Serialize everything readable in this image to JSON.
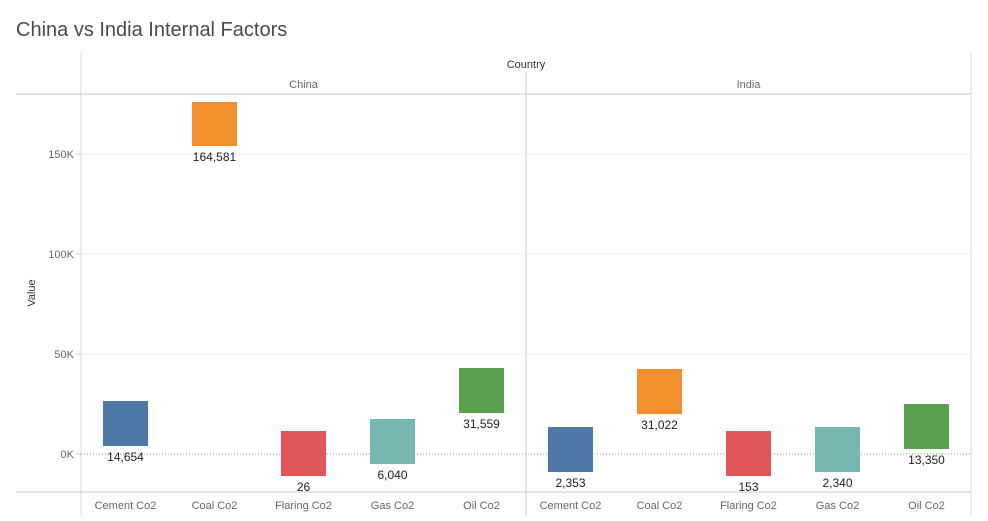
{
  "chart_data": {
    "type": "bar",
    "title": "China vs India Internal Factors",
    "column_header": "Country",
    "ylabel": "Value",
    "ylim": [
      -19000,
      180000
    ],
    "yticks": [
      {
        "value": 0,
        "label": "0K"
      },
      {
        "value": 50000,
        "label": "50K"
      },
      {
        "value": 100000,
        "label": "100K"
      },
      {
        "value": 150000,
        "label": "150K"
      }
    ],
    "panels": [
      {
        "name": "China",
        "bars": [
          {
            "category": "Cement Co2",
            "label": "14,654",
            "low": 4000,
            "high": 26500
          },
          {
            "category": "Coal Co2",
            "label": "164,581",
            "low": 154000,
            "high": 176000
          },
          {
            "category": "Flaring Co2",
            "label": "26",
            "low": -11000,
            "high": 11500
          },
          {
            "category": "Gas Co2",
            "label": "6,040",
            "low": -5000,
            "high": 17500
          },
          {
            "category": "Oil Co2",
            "label": "31,559",
            "low": 20500,
            "high": 43000
          }
        ]
      },
      {
        "name": "India",
        "bars": [
          {
            "category": "Cement Co2",
            "label": "2,353",
            "low": -9000,
            "high": 13500
          },
          {
            "category": "Coal Co2",
            "label": "31,022",
            "low": 20000,
            "high": 42500
          },
          {
            "category": "Flaring Co2",
            "label": "153",
            "low": -11000,
            "high": 11500
          },
          {
            "category": "Gas Co2",
            "label": "2,340",
            "low": -9000,
            "high": 13500
          },
          {
            "category": "Oil Co2",
            "label": "13,350",
            "low": 2500,
            "high": 25000
          }
        ]
      }
    ],
    "colors": {
      "Cement Co2": "#4e79a7",
      "Coal Co2": "#f28e2b",
      "Flaring Co2": "#e15759",
      "Gas Co2": "#76b7b2",
      "Oil Co2": "#59a14f"
    }
  }
}
